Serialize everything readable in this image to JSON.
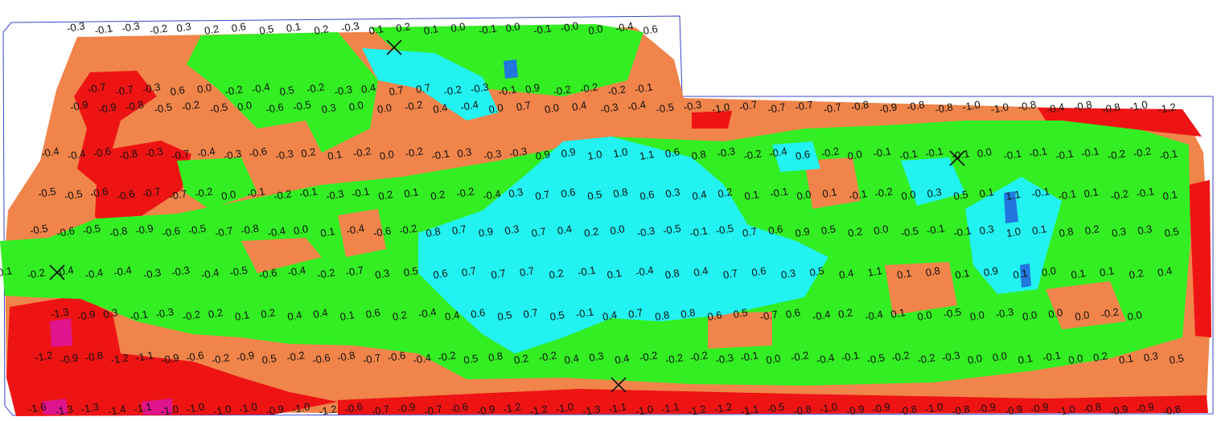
{
  "colors": {
    "red": "#ee1414",
    "orange": "#f0844a",
    "green": "#33ee22",
    "cyan": "#22f2f2",
    "blue": "#2277dd",
    "magenta": "#e0148c",
    "outline": "#3a44cc",
    "marker": "#111111"
  },
  "labels": {
    "top_edge": [
      "-0.3",
      "-0.1",
      "-0.3",
      "-0.2",
      "0.3",
      "0.2",
      "0.6",
      "0.5",
      "0.1",
      "0.2",
      "-0.3",
      "0.1",
      "0.2",
      "0.1",
      "0.0",
      "-0.1",
      "0.0",
      "-0.1",
      "-0.0",
      "0.0",
      "-0.4",
      "0.6"
    ],
    "row_1": [
      "-0.7",
      "-0.7",
      "-0.3",
      "0.6",
      "0.0",
      "-0.2",
      "-0.4",
      "0.5",
      "-0.2",
      "-0.3",
      "0.4",
      "0.7",
      "0.7",
      "-0.2",
      "-0.3",
      "-0.1",
      "0.9",
      "-0.2",
      "-0.2",
      "-0.2",
      "-0.1"
    ],
    "row_2": [
      "-0.9",
      "-0.9",
      "-0.8",
      "-0.5",
      "-0.2",
      "-0.5",
      "0.0",
      "-0.6",
      "-0.5",
      "0.3",
      "0.0",
      "0.0",
      "-0.2",
      "0.4",
      "-0.4",
      "0.0",
      "0.7",
      "0.0",
      "0.4",
      "-0.3",
      "-0.4",
      "-0.5",
      "-0.3",
      "-1.0",
      "-0.7",
      "-0.7",
      "-0.7",
      "-0.7",
      "-0.8",
      "-0.9",
      "-0.8",
      "-0.8",
      "-1.0",
      "-1.0",
      "-0.8",
      "-0.4",
      "-0.8",
      "-0.8",
      "-1.0",
      "-1.2"
    ],
    "row_3": [
      "-0.4",
      "-0.4",
      "-0.6",
      "-0.8",
      "-0.3",
      "-0.7",
      "-0.4",
      "-0.3",
      "-0.6",
      "-0.3",
      "0.2",
      "0.1",
      "-0.2",
      "0.0",
      "-0.2",
      "-0.1",
      "0.3",
      "-0.3",
      "-0.3",
      "0.9",
      "0.9",
      "1.0",
      "1.0",
      "1.1",
      "0.6",
      "0.8",
      "-0.3",
      "-0.2",
      "-0.4",
      "0.6",
      "-0.2",
      "0.0",
      "-0.1",
      "-0.1",
      "-0.1",
      "-0.1",
      "0.0",
      "-0.1",
      "-0.1",
      "-0.1",
      "-0.1",
      "-0.2",
      "-0.2",
      "-0.1"
    ],
    "row_4": [
      "-0.5",
      "-0.5",
      "-0.6",
      "-0.6",
      "-0.7",
      "-0.7",
      "-0.2",
      "0.0",
      "-0.1",
      "-0.2",
      "-0.1",
      "-0.3",
      "-0.1",
      "0.2",
      "0.1",
      "0.2",
      "-0.2",
      "-0.4",
      "0.3",
      "0.7",
      "0.6",
      "0.5",
      "0.8",
      "0.6",
      "0.3",
      "0.4",
      "0.2",
      "0.1",
      "-0.1",
      "0.0",
      "0.1",
      "-0.1",
      "-0.2",
      "0.0",
      "0.3",
      "0.5",
      "0.1",
      "1.1",
      "-0.1",
      "-0.1",
      "0.1",
      "-0.2",
      "-0.1",
      "0.1"
    ],
    "row_5": [
      "-0.5",
      "-0.6",
      "-0.5",
      "-0.8",
      "-0.9",
      "-0.6",
      "-0.5",
      "-0.7",
      "-0.8",
      "-0.4",
      "0.0",
      "0.1",
      "-0.4",
      "-0.6",
      "-0.2",
      "0.8",
      "0.7",
      "0.9",
      "0.3",
      "0.7",
      "0.4",
      "0.2",
      "0.0",
      "-0.3",
      "-0.5",
      "-0.1",
      "-0.5",
      "0.7",
      "0.6",
      "0.9",
      "0.5",
      "0.2",
      "0.0",
      "-0.5",
      "-0.1",
      "-0.1",
      "0.3",
      "1.0",
      "0.1",
      "0.8",
      "0.2",
      "0.3",
      "0.3",
      "0.5"
    ],
    "row_6": [
      "0.1",
      "-0.2",
      "-0.4",
      "-0.4",
      "-0.4",
      "-0.3",
      "-0.3",
      "-0.4",
      "-0.5",
      "-0.6",
      "-0.4",
      "-0.2",
      "-0.7",
      "0.3",
      "0.5",
      "0.6",
      "0.7",
      "0.7",
      "0.7",
      "0.2",
      "-0.1",
      "0.1",
      "-0.4",
      "0.8",
      "0.4",
      "0.7",
      "0.6",
      "0.3",
      "0.5",
      "0.4",
      "1.1",
      "0.1",
      "0.8",
      "0.1",
      "0.9",
      "0.1",
      "0.0",
      "0.1",
      "0.1",
      "0.2",
      "0.4"
    ],
    "row_7": [
      "-1.3",
      "-0.9",
      "0.3",
      "-0.1",
      "-0.3",
      "-0.2",
      "0.2",
      "0.1",
      "0.2",
      "0.4",
      "0.4",
      "0.1",
      "0.6",
      "0.2",
      "-0.4",
      "0.4",
      "0.6",
      "0.5",
      "0.7",
      "0.5",
      "-0.1",
      "0.4",
      "0.7",
      "0.8",
      "0.8",
      "0.6",
      "0.5",
      "-0.7",
      "0.6",
      "-0.4",
      "0.2",
      "-0.4",
      "0.1",
      "0.0",
      "-0.5",
      "0.0",
      "-0.3",
      "0.0",
      "0.0",
      "0.0",
      "-0.2",
      "0.0"
    ],
    "row_8": [
      "-1.2",
      "-0.9",
      "-0.8",
      "-1.2",
      "-1.1",
      "-0.9",
      "-0.6",
      "-0.2",
      "-0.9",
      "0.5",
      "-0.2",
      "-0.6",
      "-0.8",
      "-0.7",
      "-0.6",
      "-0.4",
      "-0.2",
      "0.5",
      "0.8",
      "0.2",
      "-0.2",
      "0.4",
      "0.3",
      "0.4",
      "-0.2",
      "-0.2",
      "-0.2",
      "-0.3",
      "-0.1",
      "0.0",
      "-0.2",
      "-0.4",
      "-0.1",
      "-0.5",
      "-0.2",
      "-0.2",
      "-0.3",
      "0.0",
      "0.0",
      "0.1",
      "-0.1",
      "0.0",
      "0.2",
      "0.1",
      "0.3",
      "0.5"
    ],
    "bottom_edge": [
      "-1.6",
      "-1.3",
      "-1.3",
      "-1.4",
      "-1.1",
      "-1.0",
      "-1.0",
      "-1.0",
      "-1.0",
      "-0.9",
      "-1.0",
      "-1.2",
      "-0.6",
      "-0.7",
      "-0.9",
      "-0.7",
      "-0.6",
      "-0.9",
      "-1.2",
      "-1.2",
      "-1.0",
      "-1.3",
      "-1.1",
      "-1.0",
      "-1.1",
      "-1.2",
      "-1.2",
      "-1.1",
      "-0.5",
      "-0.8",
      "-1.0",
      "-0.9",
      "-0.9",
      "-0.8",
      "-1.0",
      "-0.8",
      "-0.9",
      "-0.9",
      "-0.9",
      "-1.0",
      "-0.8",
      "-0.9",
      "-0.9",
      "-0.8"
    ]
  }
}
